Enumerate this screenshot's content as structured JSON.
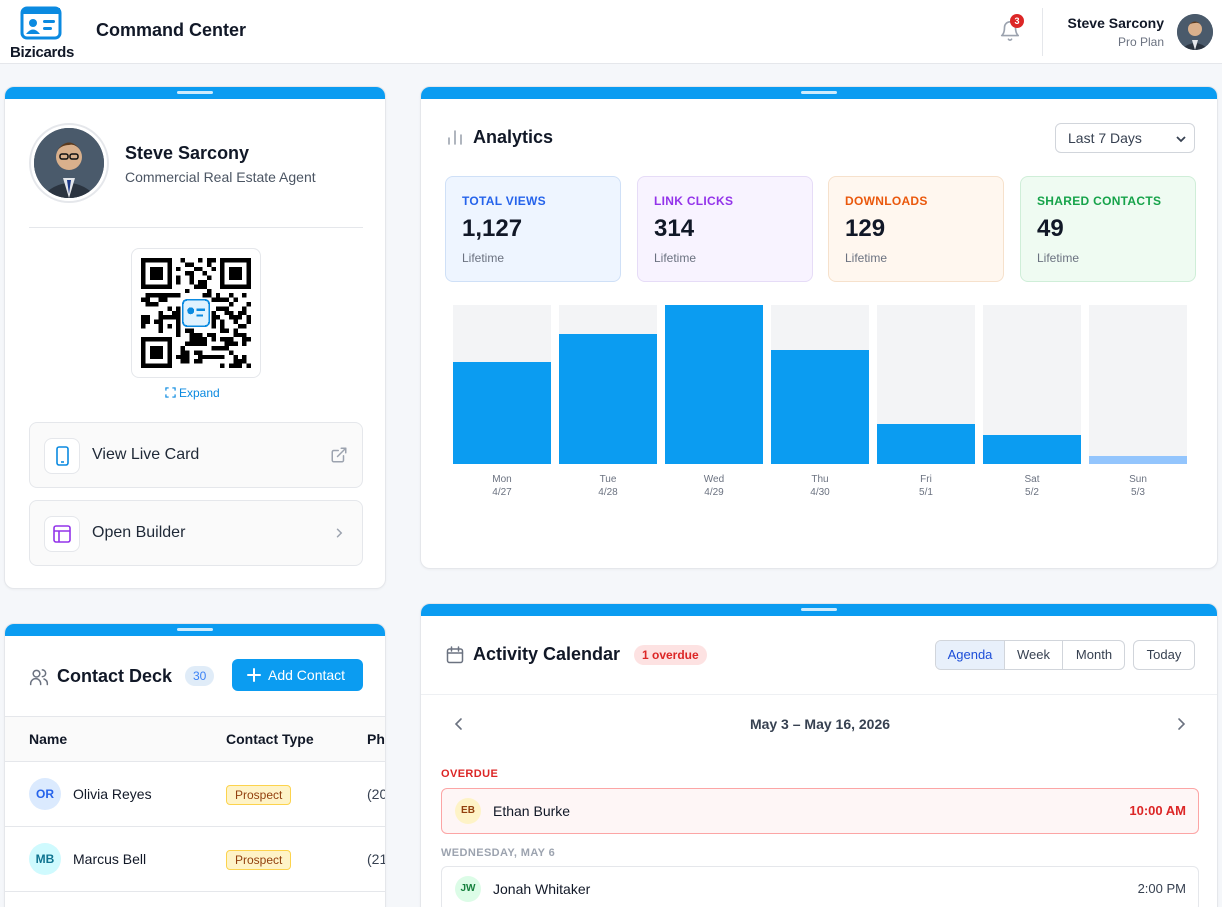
{
  "header": {
    "logo_text": "Bizicards",
    "title": "Command Center",
    "notification_count": "3",
    "user_name": "Steve Sarcony",
    "user_plan": "Pro Plan"
  },
  "profile": {
    "name": "Steve Sarcony",
    "role": "Commercial Real Estate Agent",
    "expand_label": "Expand",
    "actions": [
      {
        "label": "View Live Card"
      },
      {
        "label": "Open Builder"
      }
    ]
  },
  "analytics": {
    "title": "Analytics",
    "range": "Last 7 Days",
    "stats": [
      {
        "label": "TOTAL VIEWS",
        "value": "1,127",
        "sub": "Lifetime",
        "color": "#2563eb",
        "bg": "#eef5ff",
        "border": "#cfe0f7"
      },
      {
        "label": "LINK CLICKS",
        "value": "314",
        "sub": "Lifetime",
        "color": "#9333ea",
        "bg": "#f8f3ff",
        "border": "#e6dcf7"
      },
      {
        "label": "DOWNLOADS",
        "value": "129",
        "sub": "Lifetime",
        "color": "#ea580c",
        "bg": "#fff7ef",
        "border": "#f6e1cc"
      },
      {
        "label": "SHARED CONTACTS",
        "value": "49",
        "sub": "Lifetime",
        "color": "#16a34a",
        "bg": "#effbf2",
        "border": "#cfeed8"
      }
    ]
  },
  "chart_data": {
    "type": "bar",
    "categories": [
      "Mon 4/27",
      "Tue 4/28",
      "Wed 4/29",
      "Thu 4/30",
      "Fri 5/1",
      "Sat 5/2",
      "Sun 5/3"
    ],
    "days": [
      "Mon",
      "Tue",
      "Wed",
      "Thu",
      "Fri",
      "Sat",
      "Sun"
    ],
    "dates": [
      "4/27",
      "4/28",
      "4/29",
      "4/30",
      "5/1",
      "5/2",
      "5/3"
    ],
    "values": [
      0.64,
      0.82,
      1.0,
      0.72,
      0.25,
      0.18,
      0.05
    ],
    "ylim": [
      0,
      1
    ],
    "bar_color": "#0b9cf1",
    "zero_color": "#93c5fd",
    "grid": false
  },
  "contacts": {
    "title": "Contact Deck",
    "count": "30",
    "add_label": "Add Contact",
    "columns": [
      "Name",
      "Contact Type",
      "Phone"
    ],
    "rows": [
      {
        "initials": "OR",
        "name": "Olivia Reyes",
        "type": "Prospect",
        "phone": "(20",
        "av_bg": "#dbeafe",
        "av_fg": "#2563eb"
      },
      {
        "initials": "MB",
        "name": "Marcus Bell",
        "type": "Prospect",
        "phone": "(21",
        "av_bg": "#cffafe",
        "av_fg": "#0e7490"
      }
    ]
  },
  "calendar": {
    "title": "Activity Calendar",
    "overdue_badge": "1 overdue",
    "views": [
      "Agenda",
      "Week",
      "Month"
    ],
    "today_label": "Today",
    "range": "May 3 – May 16, 2026",
    "sections": [
      {
        "label": "OVERDUE",
        "events": [
          {
            "initials": "EB",
            "name": "Ethan Burke",
            "time": "10:00 AM"
          }
        ]
      },
      {
        "label": "WEDNESDAY, MAY 6",
        "events": [
          {
            "initials": "JW",
            "name": "Jonah Whitaker",
            "time": "2:00 PM"
          }
        ]
      }
    ]
  }
}
